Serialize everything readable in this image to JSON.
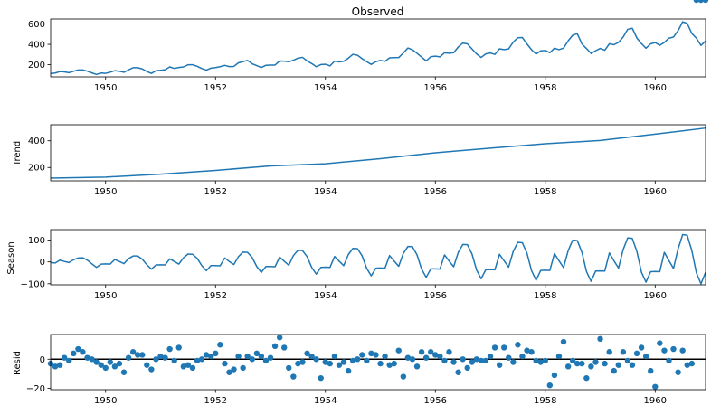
{
  "chart_data": [
    {
      "type": "line",
      "title": "Observed",
      "ylabel": "",
      "xlim": [
        1949.0,
        1960.917
      ],
      "ylim": [
        80,
        650
      ],
      "xticks": [
        1950,
        1952,
        1954,
        1956,
        1958,
        1960
      ],
      "yticks": [
        200,
        400,
        600
      ],
      "grid": false,
      "x": [
        1949.0,
        1949.083,
        1949.167,
        1949.25,
        1949.333,
        1949.417,
        1949.5,
        1949.583,
        1949.667,
        1949.75,
        1949.833,
        1949.917,
        1950.0,
        1950.083,
        1950.167,
        1950.25,
        1950.333,
        1950.417,
        1950.5,
        1950.583,
        1950.667,
        1950.75,
        1950.833,
        1950.917,
        1951.0,
        1951.083,
        1951.167,
        1951.25,
        1951.333,
        1951.417,
        1951.5,
        1951.583,
        1951.667,
        1951.75,
        1951.833,
        1951.917,
        1952.0,
        1952.083,
        1952.167,
        1952.25,
        1952.333,
        1952.417,
        1952.5,
        1952.583,
        1952.667,
        1952.75,
        1952.833,
        1952.917,
        1953.0,
        1953.083,
        1953.167,
        1953.25,
        1953.333,
        1953.417,
        1953.5,
        1953.583,
        1953.667,
        1953.75,
        1953.833,
        1953.917,
        1954.0,
        1954.083,
        1954.167,
        1954.25,
        1954.333,
        1954.417,
        1954.5,
        1954.583,
        1954.667,
        1954.75,
        1954.833,
        1954.917,
        1955.0,
        1955.083,
        1955.167,
        1955.25,
        1955.333,
        1955.417,
        1955.5,
        1955.583,
        1955.667,
        1955.75,
        1955.833,
        1955.917,
        1956.0,
        1956.083,
        1956.167,
        1956.25,
        1956.333,
        1956.417,
        1956.5,
        1956.583,
        1956.667,
        1956.75,
        1956.833,
        1956.917,
        1957.0,
        1957.083,
        1957.167,
        1957.25,
        1957.333,
        1957.417,
        1957.5,
        1957.583,
        1957.667,
        1957.75,
        1957.833,
        1957.917,
        1958.0,
        1958.083,
        1958.167,
        1958.25,
        1958.333,
        1958.417,
        1958.5,
        1958.583,
        1958.667,
        1958.75,
        1958.833,
        1958.917,
        1959.0,
        1959.083,
        1959.167,
        1959.25,
        1959.333,
        1959.417,
        1959.5,
        1959.583,
        1959.667,
        1959.75,
        1959.833,
        1959.917,
        1960.0,
        1960.083,
        1960.167,
        1960.25,
        1960.333,
        1960.417,
        1960.5,
        1960.583,
        1960.667,
        1960.75,
        1960.833,
        1960.917
      ],
      "series": [
        {
          "color": "#1f77b4",
          "values": [
            112,
            118,
            132,
            129,
            121,
            135,
            148,
            148,
            136,
            119,
            104,
            118,
            115,
            126,
            141,
            135,
            125,
            149,
            170,
            170,
            158,
            133,
            114,
            140,
            145,
            150,
            178,
            163,
            172,
            178,
            199,
            199,
            184,
            162,
            146,
            166,
            171,
            180,
            193,
            181,
            183,
            218,
            230,
            242,
            209,
            191,
            172,
            194,
            196,
            196,
            236,
            235,
            229,
            243,
            264,
            272,
            237,
            211,
            180,
            201,
            204,
            188,
            235,
            227,
            234,
            264,
            302,
            293,
            259,
            229,
            203,
            229,
            242,
            233,
            267,
            269,
            270,
            315,
            364,
            347,
            312,
            274,
            237,
            278,
            284,
            277,
            317,
            313,
            318,
            374,
            413,
            405,
            355,
            306,
            271,
            306,
            315,
            301,
            356,
            348,
            355,
            422,
            465,
            467,
            404,
            347,
            305,
            336,
            340,
            318,
            362,
            348,
            363,
            435,
            491,
            505,
            404,
            359,
            310,
            337,
            360,
            342,
            406,
            396,
            420,
            472,
            548,
            559,
            463,
            407,
            362,
            405,
            417,
            391,
            419,
            461,
            472,
            535,
            622,
            606,
            508,
            461,
            390,
            432
          ]
        }
      ]
    },
    {
      "type": "line",
      "title": "",
      "ylabel": "Trend",
      "xlim": [
        1949.0,
        1960.917
      ],
      "ylim": [
        100,
        520
      ],
      "xticks": [
        1950,
        1952,
        1954,
        1956,
        1958,
        1960
      ],
      "yticks": [
        200,
        400
      ],
      "grid": false,
      "x": [
        1949.0,
        1950.0,
        1951.0,
        1952.0,
        1953.0,
        1954.0,
        1955.0,
        1956.0,
        1957.0,
        1958.0,
        1959.0,
        1960.0,
        1960.917
      ],
      "series": [
        {
          "color": "#1f77b4",
          "values": [
            120,
            128,
            150,
            178,
            212,
            228,
            266,
            310,
            345,
            378,
            402,
            450,
            495
          ]
        }
      ]
    },
    {
      "type": "line",
      "title": "",
      "ylabel": "Season",
      "xlim": [
        1949.0,
        1960.917
      ],
      "ylim": [
        -105,
        148
      ],
      "xticks": [
        1950,
        1952,
        1954,
        1956,
        1958,
        1960
      ],
      "yticks": [
        -100,
        0,
        100
      ],
      "grid": false,
      "x": [
        1949.0,
        1949.083,
        1949.167,
        1949.25,
        1949.333,
        1949.417,
        1949.5,
        1949.583,
        1949.667,
        1949.75,
        1949.833,
        1949.917,
        1950.0,
        1950.083,
        1950.167,
        1950.25,
        1950.333,
        1950.417,
        1950.5,
        1950.583,
        1950.667,
        1950.75,
        1950.833,
        1950.917,
        1951.0,
        1951.083,
        1951.167,
        1951.25,
        1951.333,
        1951.417,
        1951.5,
        1951.583,
        1951.667,
        1951.75,
        1951.833,
        1951.917,
        1952.0,
        1952.083,
        1952.167,
        1952.25,
        1952.333,
        1952.417,
        1952.5,
        1952.583,
        1952.667,
        1952.75,
        1952.833,
        1952.917,
        1953.0,
        1953.083,
        1953.167,
        1953.25,
        1953.333,
        1953.417,
        1953.5,
        1953.583,
        1953.667,
        1953.75,
        1953.833,
        1953.917,
        1954.0,
        1954.083,
        1954.167,
        1954.25,
        1954.333,
        1954.417,
        1954.5,
        1954.583,
        1954.667,
        1954.75,
        1954.833,
        1954.917,
        1955.0,
        1955.083,
        1955.167,
        1955.25,
        1955.333,
        1955.417,
        1955.5,
        1955.583,
        1955.667,
        1955.75,
        1955.833,
        1955.917,
        1956.0,
        1956.083,
        1956.167,
        1956.25,
        1956.333,
        1956.417,
        1956.5,
        1956.583,
        1956.667,
        1956.75,
        1956.833,
        1956.917,
        1957.0,
        1957.083,
        1957.167,
        1957.25,
        1957.333,
        1957.417,
        1957.5,
        1957.583,
        1957.667,
        1957.75,
        1957.833,
        1957.917,
        1958.0,
        1958.083,
        1958.167,
        1958.25,
        1958.333,
        1958.417,
        1958.5,
        1958.583,
        1958.667,
        1958.75,
        1958.833,
        1958.917,
        1959.0,
        1959.083,
        1959.167,
        1959.25,
        1959.333,
        1959.417,
        1959.5,
        1959.583,
        1959.667,
        1959.75,
        1959.833,
        1959.917,
        1960.0,
        1960.083,
        1960.167,
        1960.25,
        1960.333,
        1960.417,
        1960.5,
        1960.583,
        1960.667,
        1960.75,
        1960.833,
        1960.917
      ],
      "series": [
        {
          "color": "#1f77b4",
          "values": [
            -3,
            -5,
            8,
            2,
            -3,
            10,
            18,
            19,
            8,
            -9,
            -25,
            -10,
            -9,
            -10,
            11,
            2,
            -8,
            15,
            27,
            27,
            12,
            -13,
            -33,
            -14,
            -13,
            -14,
            14,
            2,
            -10,
            19,
            36,
            35,
            16,
            -17,
            -40,
            -17,
            -17,
            -18,
            18,
            2,
            -12,
            24,
            45,
            44,
            20,
            -21,
            -48,
            -21,
            -21,
            -22,
            22,
            3,
            -15,
            29,
            53,
            52,
            24,
            -25,
            -56,
            -25,
            -24,
            -25,
            25,
            3,
            -17,
            34,
            62,
            61,
            28,
            -29,
            -64,
            -29,
            -28,
            -29,
            29,
            4,
            -20,
            39,
            71,
            70,
            32,
            -33,
            -71,
            -32,
            -32,
            -33,
            32,
            4,
            -22,
            44,
            80,
            79,
            36,
            -37,
            -77,
            -36,
            -35,
            -36,
            35,
            5,
            -24,
            48,
            90,
            88,
            40,
            -40,
            -84,
            -39,
            -38,
            -39,
            38,
            5,
            -26,
            52,
            100,
            98,
            44,
            -44,
            -89,
            -42,
            -41,
            -42,
            41,
            5,
            -28,
            56,
            110,
            108,
            48,
            -47,
            -93,
            -45,
            -44,
            -45,
            44,
            6,
            -30,
            60,
            125,
            122,
            52,
            -50,
            -100,
            -48
          ]
        }
      ]
    },
    {
      "type": "scatter",
      "title": "",
      "ylabel": "Resid",
      "xlim": [
        1949.0,
        1960.917
      ],
      "ylim": [
        -21,
        17
      ],
      "xticks": [
        1950,
        1952,
        1954,
        1956,
        1958,
        1960
      ],
      "yticks": [
        -20,
        0
      ],
      "grid": false,
      "baseline": 0,
      "x": [
        1949.0,
        1949.083,
        1949.167,
        1949.25,
        1949.333,
        1949.417,
        1949.5,
        1949.583,
        1949.667,
        1949.75,
        1949.833,
        1949.917,
        1950.0,
        1950.083,
        1950.167,
        1950.25,
        1950.333,
        1950.417,
        1950.5,
        1950.583,
        1950.667,
        1950.75,
        1950.833,
        1950.917,
        1951.0,
        1951.083,
        1951.167,
        1951.25,
        1951.333,
        1951.417,
        1951.5,
        1951.583,
        1951.667,
        1951.75,
        1951.833,
        1951.917,
        1952.0,
        1952.083,
        1952.167,
        1952.25,
        1952.333,
        1952.417,
        1952.5,
        1952.583,
        1952.667,
        1952.75,
        1952.833,
        1952.917,
        1953.0,
        1953.083,
        1953.167,
        1953.25,
        1953.333,
        1953.417,
        1953.5,
        1953.583,
        1953.667,
        1953.75,
        1953.833,
        1953.917,
        1954.0,
        1954.083,
        1954.167,
        1954.25,
        1954.333,
        1954.417,
        1954.5,
        1954.583,
        1954.667,
        1954.75,
        1954.833,
        1954.917,
        1955.0,
        1955.083,
        1955.167,
        1955.25,
        1955.333,
        1955.417,
        1955.5,
        1955.583,
        1955.667,
        1955.75,
        1955.833,
        1955.917,
        1956.0,
        1956.083,
        1956.167,
        1956.25,
        1956.333,
        1956.417,
        1956.5,
        1956.583,
        1956.667,
        1956.75,
        1956.833,
        1956.917,
        1957.0,
        1957.083,
        1957.167,
        1957.25,
        1957.333,
        1957.417,
        1957.5,
        1957.583,
        1957.667,
        1957.75,
        1957.833,
        1957.917,
        1958.0,
        1958.083,
        1958.167,
        1958.25,
        1958.333,
        1958.417,
        1958.5,
        1958.583,
        1958.667,
        1958.75,
        1958.833,
        1958.917,
        1959.0,
        1959.083,
        1959.167,
        1959.25,
        1959.333,
        1959.417,
        1959.5,
        1959.583,
        1959.667,
        1959.75,
        1959.833,
        1959.917,
        1960.0,
        1960.083,
        1960.167,
        1960.25,
        1960.333,
        1960.417,
        1960.5,
        1960.583,
        1960.667,
        1960.75,
        1960.833,
        1960.917
      ],
      "series": [
        {
          "color": "#1f77b4",
          "values": [
            -3,
            -5,
            -4,
            1,
            -1,
            4,
            7,
            5,
            1,
            0,
            -2,
            -4,
            -6,
            -2,
            -5,
            -3,
            -9,
            1,
            5,
            3,
            3,
            -4,
            -7,
            0,
            2,
            1,
            7,
            -1,
            8,
            -5,
            -4,
            -6,
            -1,
            0,
            3,
            2,
            4,
            10,
            -3,
            -9,
            -7,
            2,
            -6,
            2,
            0,
            4,
            2,
            -1,
            1,
            9,
            15,
            8,
            -6,
            -12,
            -3,
            -2,
            4,
            2,
            0,
            -13,
            -2,
            -3,
            2,
            -4,
            -2,
            -8,
            -1,
            0,
            3,
            -1,
            4,
            3,
            -3,
            2,
            -4,
            -3,
            6,
            -12,
            1,
            0,
            -5,
            5,
            1,
            5,
            3,
            2,
            -1,
            5,
            -2,
            -9,
            0,
            -6,
            -2,
            0,
            -1,
            -1,
            2,
            8,
            -4,
            8,
            1,
            -2,
            10,
            2,
            6,
            5,
            -1,
            -2,
            -1,
            -18,
            -11,
            2,
            12,
            -5,
            -1,
            -3,
            -3,
            -13,
            -5,
            -2,
            14,
            -3,
            5,
            -8,
            -4,
            5,
            -1,
            -4,
            4,
            8,
            2,
            -8,
            -19,
            11,
            6,
            -1,
            7,
            -9,
            6,
            -4,
            -3
          ]
        }
      ]
    }
  ]
}
